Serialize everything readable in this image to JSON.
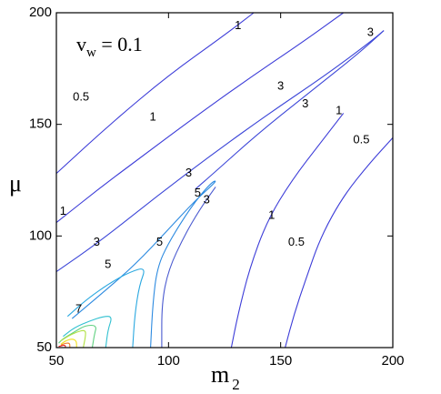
{
  "chart_data": {
    "type": "contour",
    "xlabel": "m",
    "xlabel_sub": "2",
    "ylabel": "μ",
    "annotation": {
      "main": "v",
      "sub": "w",
      "rest": " = 0.1"
    },
    "xlim": [
      50,
      200
    ],
    "ylim": [
      50,
      200
    ],
    "xticks": [
      50,
      100,
      150,
      200
    ],
    "yticks": [
      50,
      100,
      150,
      200
    ],
    "grid": false,
    "contours": [
      {
        "level": "0.5",
        "color": "#3c3cd8",
        "points": [
          [
            50,
            128
          ],
          [
            75,
            151
          ],
          [
            100,
            172
          ],
          [
            125,
            190
          ],
          [
            138,
            200
          ]
        ]
      },
      {
        "level": "1",
        "color": "#3c3cd8",
        "points": [
          [
            50,
            106
          ],
          [
            70,
            122
          ],
          [
            90,
            137
          ],
          [
            110,
            152
          ],
          [
            135,
            170
          ],
          [
            160,
            187
          ],
          [
            178,
            200
          ]
        ]
      },
      {
        "level": "3",
        "color": "#3c46d8",
        "points": [
          [
            50,
            84
          ],
          [
            70,
            98
          ],
          [
            95,
            118
          ],
          [
            120,
            137
          ],
          [
            145,
            155
          ],
          [
            170,
            172
          ],
          [
            190,
            187
          ],
          [
            196,
            192
          ]
        ]
      },
      {
        "level": "3",
        "color": "#3c46d8",
        "points": [
          [
            196,
            192
          ],
          [
            185,
            182
          ],
          [
            165,
            166
          ],
          [
            140,
            146
          ],
          [
            120,
            128
          ],
          [
            112,
            121
          ]
        ]
      },
      {
        "level": "5",
        "color": "#2c8ae0",
        "points": [
          [
            57,
            63
          ],
          [
            70,
            74
          ],
          [
            85,
            87
          ],
          [
            100,
            103
          ],
          [
            112,
            116
          ],
          [
            122,
            125
          ],
          [
            119,
            124
          ],
          [
            110,
            113
          ],
          [
            100,
            97
          ],
          [
            95,
            86
          ],
          [
            93,
            70
          ],
          [
            92,
            50
          ]
        ]
      },
      {
        "level": "0.5",
        "color": "#3c3cd8",
        "points": [
          [
            152,
            50
          ],
          [
            156,
            65
          ],
          [
            161,
            80
          ],
          [
            168,
            100
          ],
          [
            178,
            118
          ],
          [
            190,
            133
          ],
          [
            200,
            144
          ]
        ]
      },
      {
        "level": "1",
        "color": "#3c3cd8",
        "points": [
          [
            128,
            50
          ],
          [
            131,
            65
          ],
          [
            136,
            85
          ],
          [
            144,
            107
          ],
          [
            155,
            125
          ],
          [
            168,
            142
          ],
          [
            178,
            155
          ]
        ]
      },
      {
        "level": "",
        "color": "#4a5ad0",
        "points": [
          [
            97,
            50
          ],
          [
            97,
            70
          ],
          [
            100,
            85
          ],
          [
            107,
            100
          ],
          [
            114,
            112
          ],
          [
            121,
            122
          ]
        ]
      },
      {
        "level": "",
        "color": "#2aa8e0",
        "points": [
          [
            84,
            50
          ],
          [
            85,
            65
          ],
          [
            87,
            78
          ],
          [
            90,
            86
          ],
          [
            83,
            84
          ],
          [
            74,
            79
          ],
          [
            64,
            72
          ],
          [
            55,
            64
          ]
        ]
      },
      {
        "level": "",
        "color": "#30c0d0",
        "points": [
          [
            72,
            50
          ],
          [
            73,
            58
          ],
          [
            75,
            64
          ],
          [
            71,
            64
          ],
          [
            65,
            62
          ],
          [
            58,
            59
          ],
          [
            53,
            55
          ]
        ]
      },
      {
        "level": "",
        "color": "#60d080",
        "points": [
          [
            66,
            50
          ],
          [
            67,
            56
          ],
          [
            68,
            60
          ],
          [
            63,
            60
          ],
          [
            58,
            57
          ],
          [
            53,
            54
          ],
          [
            51,
            52
          ]
        ]
      },
      {
        "level": "7",
        "color": "#b0e040",
        "points": [
          [
            62,
            50
          ],
          [
            63,
            55
          ],
          [
            63,
            58
          ],
          [
            59,
            57
          ],
          [
            55,
            55
          ],
          [
            52,
            53
          ]
        ]
      },
      {
        "level": "",
        "color": "#f0e020",
        "points": [
          [
            59,
            50
          ],
          [
            59,
            53
          ],
          [
            57,
            54
          ],
          [
            54,
            53
          ],
          [
            52,
            51.5
          ]
        ]
      },
      {
        "level": "",
        "color": "#f08020",
        "points": [
          [
            56,
            50
          ],
          [
            56,
            52
          ],
          [
            54,
            52
          ],
          [
            52,
            51
          ]
        ]
      },
      {
        "level": "",
        "color": "#e02020",
        "points": [
          [
            54,
            50
          ],
          [
            54,
            51
          ],
          [
            53,
            51
          ],
          [
            51,
            50.5
          ]
        ]
      }
    ],
    "contour_labels": [
      {
        "text": "0.5",
        "x": 61,
        "y": 162
      },
      {
        "text": "1",
        "x": 131,
        "y": 194
      },
      {
        "text": "3",
        "x": 190,
        "y": 191
      },
      {
        "text": "1",
        "x": 93,
        "y": 153
      },
      {
        "text": "3",
        "x": 150,
        "y": 167
      },
      {
        "text": "3",
        "x": 161,
        "y": 159
      },
      {
        "text": "1",
        "x": 176,
        "y": 156
      },
      {
        "text": "0.5",
        "x": 186,
        "y": 143
      },
      {
        "text": "3",
        "x": 109,
        "y": 128
      },
      {
        "text": "5",
        "x": 113,
        "y": 119
      },
      {
        "text": "3",
        "x": 117,
        "y": 116
      },
      {
        "text": "1",
        "x": 53,
        "y": 111
      },
      {
        "text": "1",
        "x": 146,
        "y": 109
      },
      {
        "text": "3",
        "x": 68,
        "y": 97
      },
      {
        "text": "5",
        "x": 96,
        "y": 97
      },
      {
        "text": "0.5",
        "x": 157,
        "y": 97
      },
      {
        "text": "5",
        "x": 73,
        "y": 87
      },
      {
        "text": "7",
        "x": 60,
        "y": 67
      }
    ]
  }
}
